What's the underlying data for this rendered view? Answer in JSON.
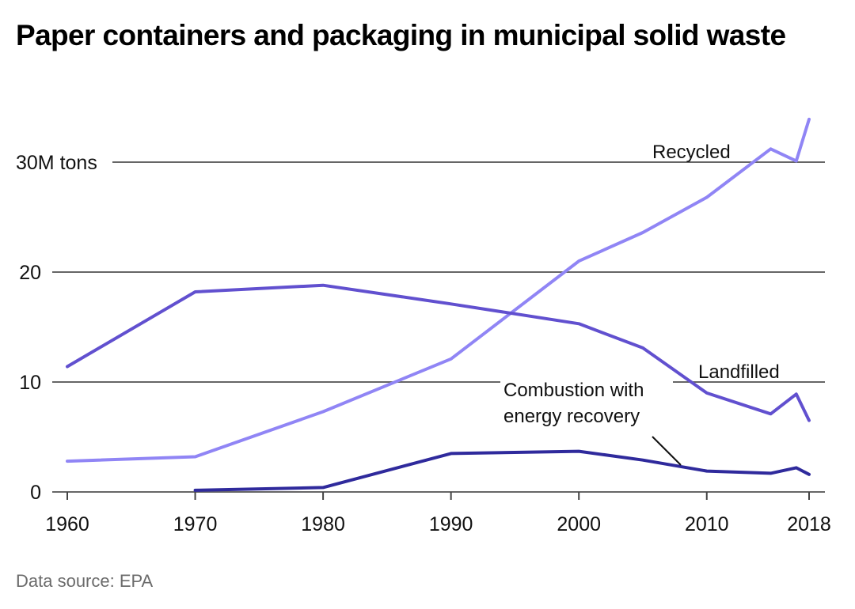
{
  "chart_data": {
    "type": "line",
    "title": "Paper containers and packaging in municipal solid waste",
    "source": "Data source: EPA",
    "ylabel_unit": "M tons",
    "xlabel": "",
    "ylim": [
      0,
      35
    ],
    "xlim": [
      1960,
      2018
    ],
    "yticks": [
      0,
      10,
      20,
      30
    ],
    "ytick_labels": [
      "0",
      "10",
      "20",
      "30"
    ],
    "xticks": [
      1960,
      1970,
      1980,
      1990,
      2000,
      2010,
      2018
    ],
    "xtick_labels": [
      "1960",
      "1970",
      "1980",
      "1990",
      "2000",
      "2010",
      "2018"
    ],
    "grid": true,
    "legend": "inline-labels",
    "series": [
      {
        "name": "Recycled",
        "color": "#9085f5",
        "x": [
          1960,
          1970,
          1980,
          1990,
          2000,
          2005,
          2010,
          2015,
          2017,
          2018
        ],
        "values": [
          2.8,
          3.2,
          7.3,
          12.1,
          21.0,
          23.6,
          26.8,
          31.2,
          30.1,
          33.9
        ]
      },
      {
        "name": "Landfilled",
        "color": "#6150cf",
        "x": [
          1960,
          1970,
          1980,
          1990,
          2000,
          2005,
          2010,
          2015,
          2017,
          2018
        ],
        "values": [
          11.4,
          18.2,
          18.8,
          17.1,
          15.3,
          13.1,
          9.0,
          7.1,
          8.9,
          6.5
        ]
      },
      {
        "name": "Combustion with energy recovery",
        "label_lines": [
          "Combustion with",
          "energy recovery"
        ],
        "color": "#2f2a9c",
        "x": [
          1970,
          1980,
          1990,
          2000,
          2005,
          2010,
          2015,
          2017,
          2018
        ],
        "values": [
          0.15,
          0.4,
          3.5,
          3.7,
          2.9,
          1.9,
          1.7,
          2.2,
          1.6
        ]
      }
    ]
  }
}
